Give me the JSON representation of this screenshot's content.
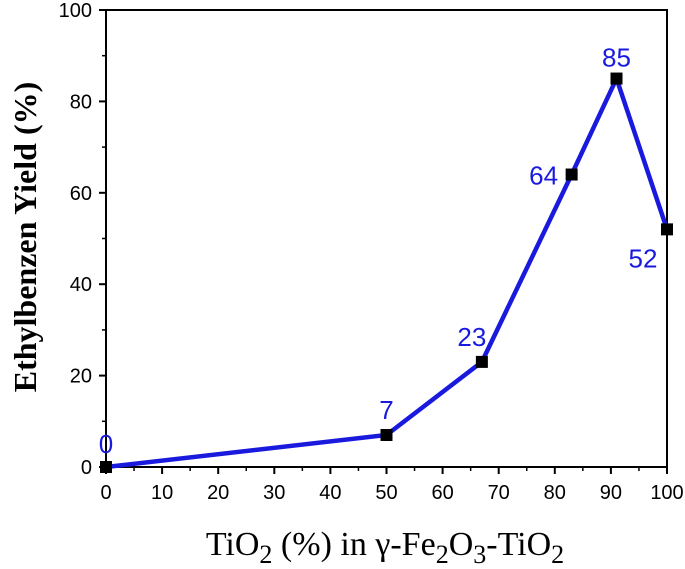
{
  "chart_data": {
    "type": "line",
    "xlabel": {
      "prefix": "TiO",
      "sub1": "2",
      "middle": " (%) in γ-Fe",
      "sub2": "2",
      "o": "O",
      "sub3": "3",
      "suffix": "-TiO",
      "sub4": "2"
    },
    "ylabel": "Ethylbenzen Yield (%)",
    "xlim": [
      0,
      100
    ],
    "ylim": [
      0,
      100
    ],
    "xticks": [
      0,
      10,
      20,
      30,
      40,
      50,
      60,
      70,
      80,
      90,
      100
    ],
    "yticks": [
      0,
      20,
      40,
      60,
      80,
      100
    ],
    "series": [
      {
        "x": [
          0,
          50,
          67,
          83,
          91,
          100
        ],
        "y": [
          0,
          7,
          23,
          64,
          85,
          52
        ],
        "labels": [
          "0",
          "7",
          "23",
          "64",
          "85",
          "52"
        ]
      }
    ],
    "line_color": "#1a1adf",
    "marker_color": "#000000",
    "grid": false
  }
}
